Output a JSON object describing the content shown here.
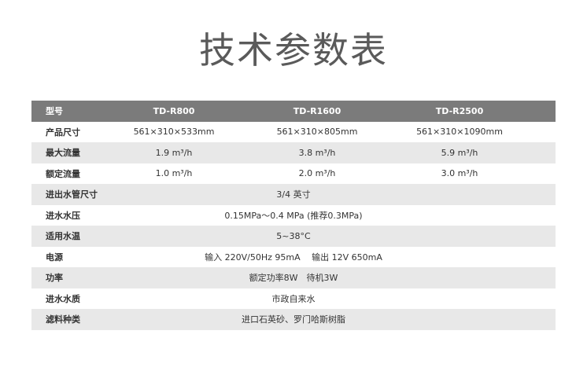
{
  "title": "技术参数表",
  "header": {
    "label": "型号",
    "models": [
      "TD-R800",
      "TD-R1600",
      "TD-R2500"
    ]
  },
  "rows": [
    {
      "label": "产品尺寸",
      "values": [
        "561×310×533mm",
        "561×310×805mm",
        "561×310×1090mm"
      ]
    },
    {
      "label": "最大流量",
      "values": [
        "1.9 m³/h",
        "3.8 m³/h",
        "5.9 m³/h"
      ]
    },
    {
      "label": "额定流量",
      "values": [
        "1.0 m³/h",
        "2.0 m³/h",
        "3.0 m³/h"
      ]
    },
    {
      "label": "进出水管尺寸",
      "value": "3/4 英寸"
    },
    {
      "label": "进水水压",
      "value": "0.15MPa～0.4 MPa (推荐0.3MPa)"
    },
    {
      "label": "适用水温",
      "value": "5~38°C"
    },
    {
      "label": "电源",
      "value": "输入 220V/50Hz 95mA　 输出 12V 650mA"
    },
    {
      "label": "功率",
      "value": "额定功率8W　待机3W"
    },
    {
      "label": "进水水质",
      "value": "市政自来水"
    },
    {
      "label": "滤料种类",
      "value": "进口石英砂、罗门哈斯树脂"
    }
  ],
  "colors": {
    "header_bg": "#7b7b7b",
    "alt_row_bg": "#e8e8e8",
    "title": "#5a5a5a"
  }
}
